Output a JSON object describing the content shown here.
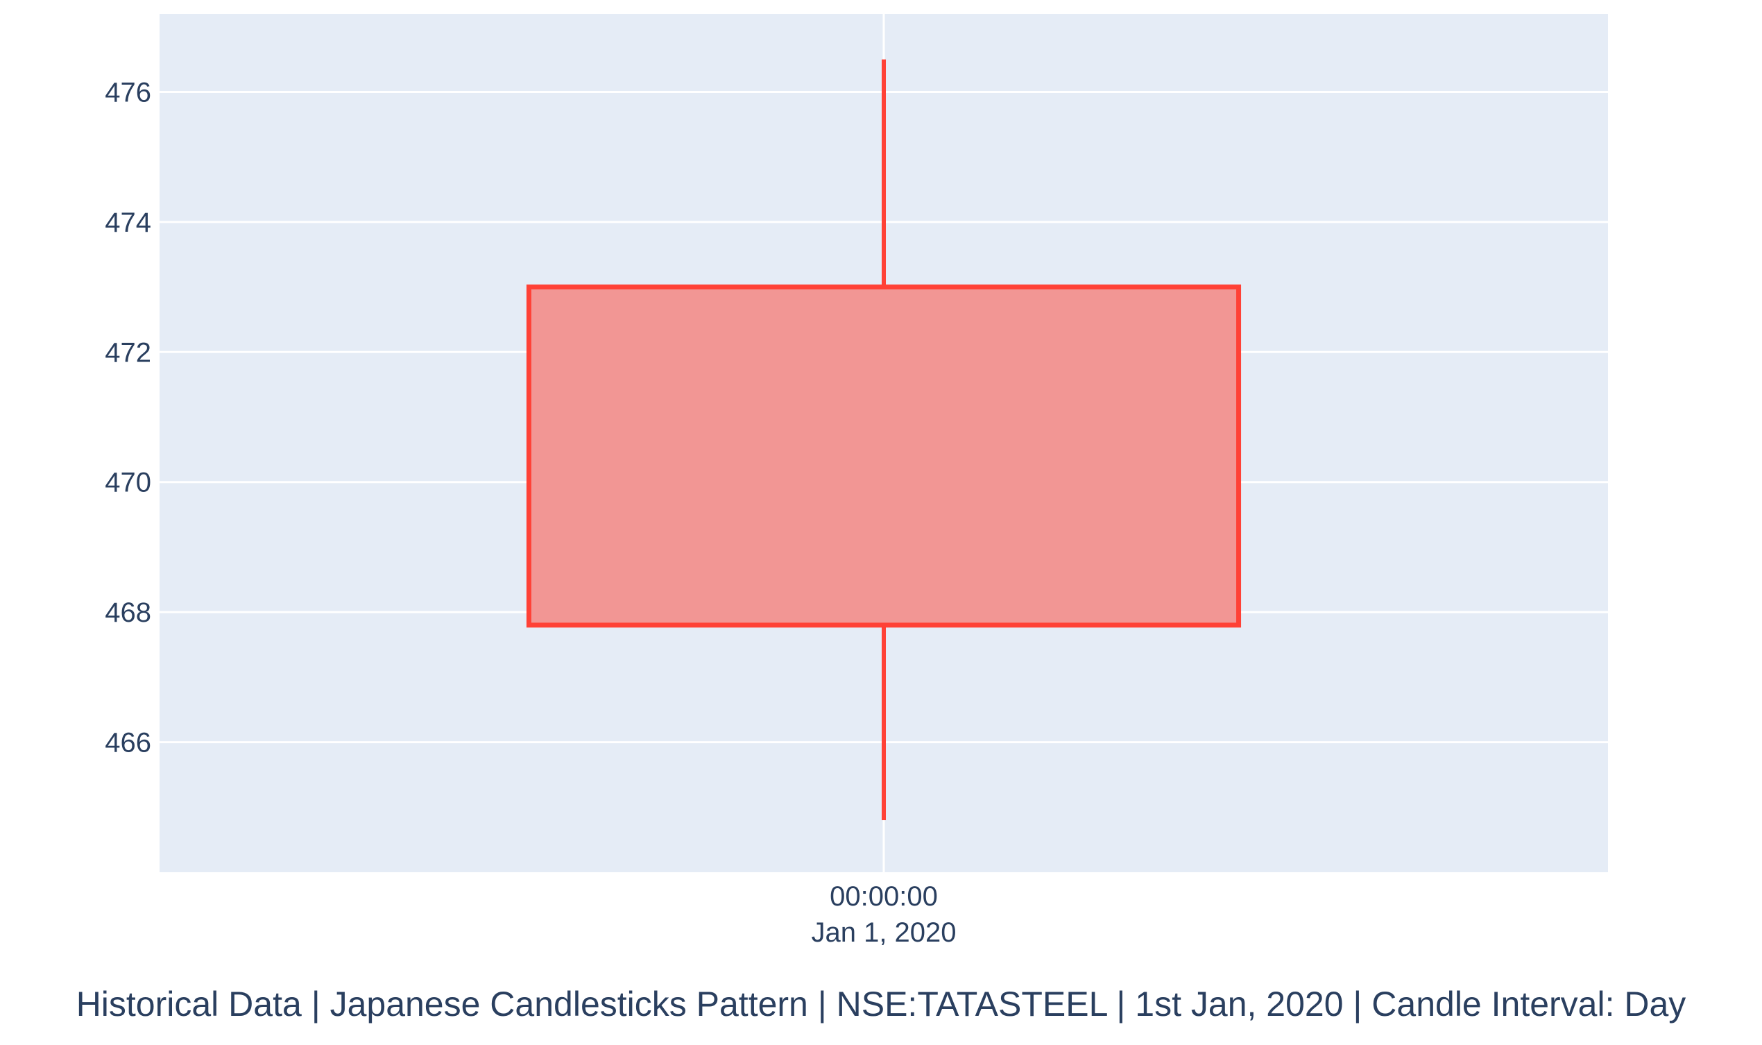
{
  "caption": "Historical Data | Japanese Candlesticks Pattern | NSE:TATASTEEL | 1st Jan, 2020 | Candle Interval: Day",
  "chart_data": {
    "type": "candlestick",
    "title": "",
    "xlabel": "",
    "ylabel": "",
    "x": [
      "2020-01-01"
    ],
    "x_tick_labels": [
      {
        "line1": "00:00:00",
        "line2": "Jan 1, 2020"
      }
    ],
    "candles": [
      {
        "date": "2020-01-01",
        "open": 473.0,
        "high": 476.5,
        "low": 464.8,
        "close": 467.8
      }
    ],
    "ylim": [
      464.0,
      477.2
    ],
    "yticks": [
      466,
      468,
      470,
      472,
      474,
      476
    ],
    "ytick_labels": [
      "466",
      "468",
      "470",
      "472",
      "474",
      "476"
    ],
    "grid": true,
    "legend": false,
    "colors": {
      "plot_bg": "#e5ecf6",
      "grid": "#ffffff",
      "decreasing_line": "#ff4136",
      "decreasing_fill": "#f29694",
      "text": "#2a3f5f"
    }
  }
}
